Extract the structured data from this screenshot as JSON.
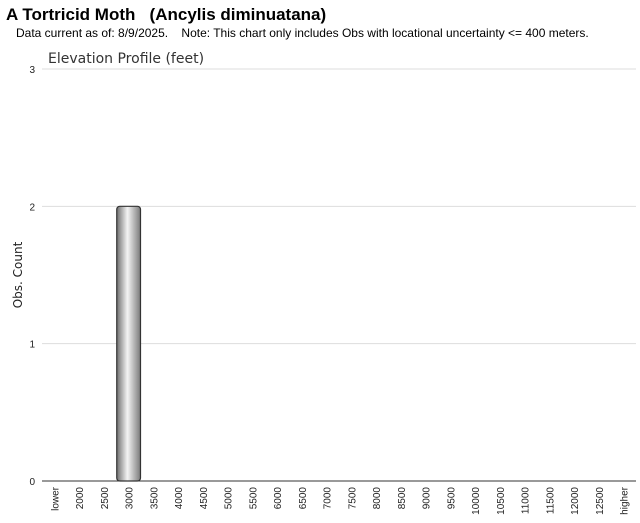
{
  "header": {
    "title": "A Tortricid Moth   (Ancylis diminuatana)",
    "subtitle": "Data current as of: 8/9/2025.    Note: This chart only includes Obs with locational uncertainty <= 400 meters."
  },
  "chart_data": {
    "type": "bar",
    "title": "Elevation Profile (feet)",
    "y_label": "Obs. Count",
    "categories": [
      "lower",
      "2000",
      "2500",
      "3000",
      "3500",
      "4000",
      "4500",
      "5000",
      "5500",
      "6000",
      "6500",
      "7000",
      "7500",
      "8000",
      "8500",
      "9000",
      "9500",
      "10000",
      "10500",
      "11000",
      "11500",
      "12000",
      "12500",
      "higher"
    ],
    "values": [
      0,
      0,
      0,
      2,
      0,
      0,
      0,
      0,
      0,
      0,
      0,
      0,
      0,
      0,
      0,
      0,
      0,
      0,
      0,
      0,
      0,
      0,
      0,
      0
    ],
    "color": "#a0a0a0",
    "ylim": [
      0,
      3
    ],
    "yticks": [
      0,
      1,
      2,
      3
    ],
    "grid": true
  }
}
